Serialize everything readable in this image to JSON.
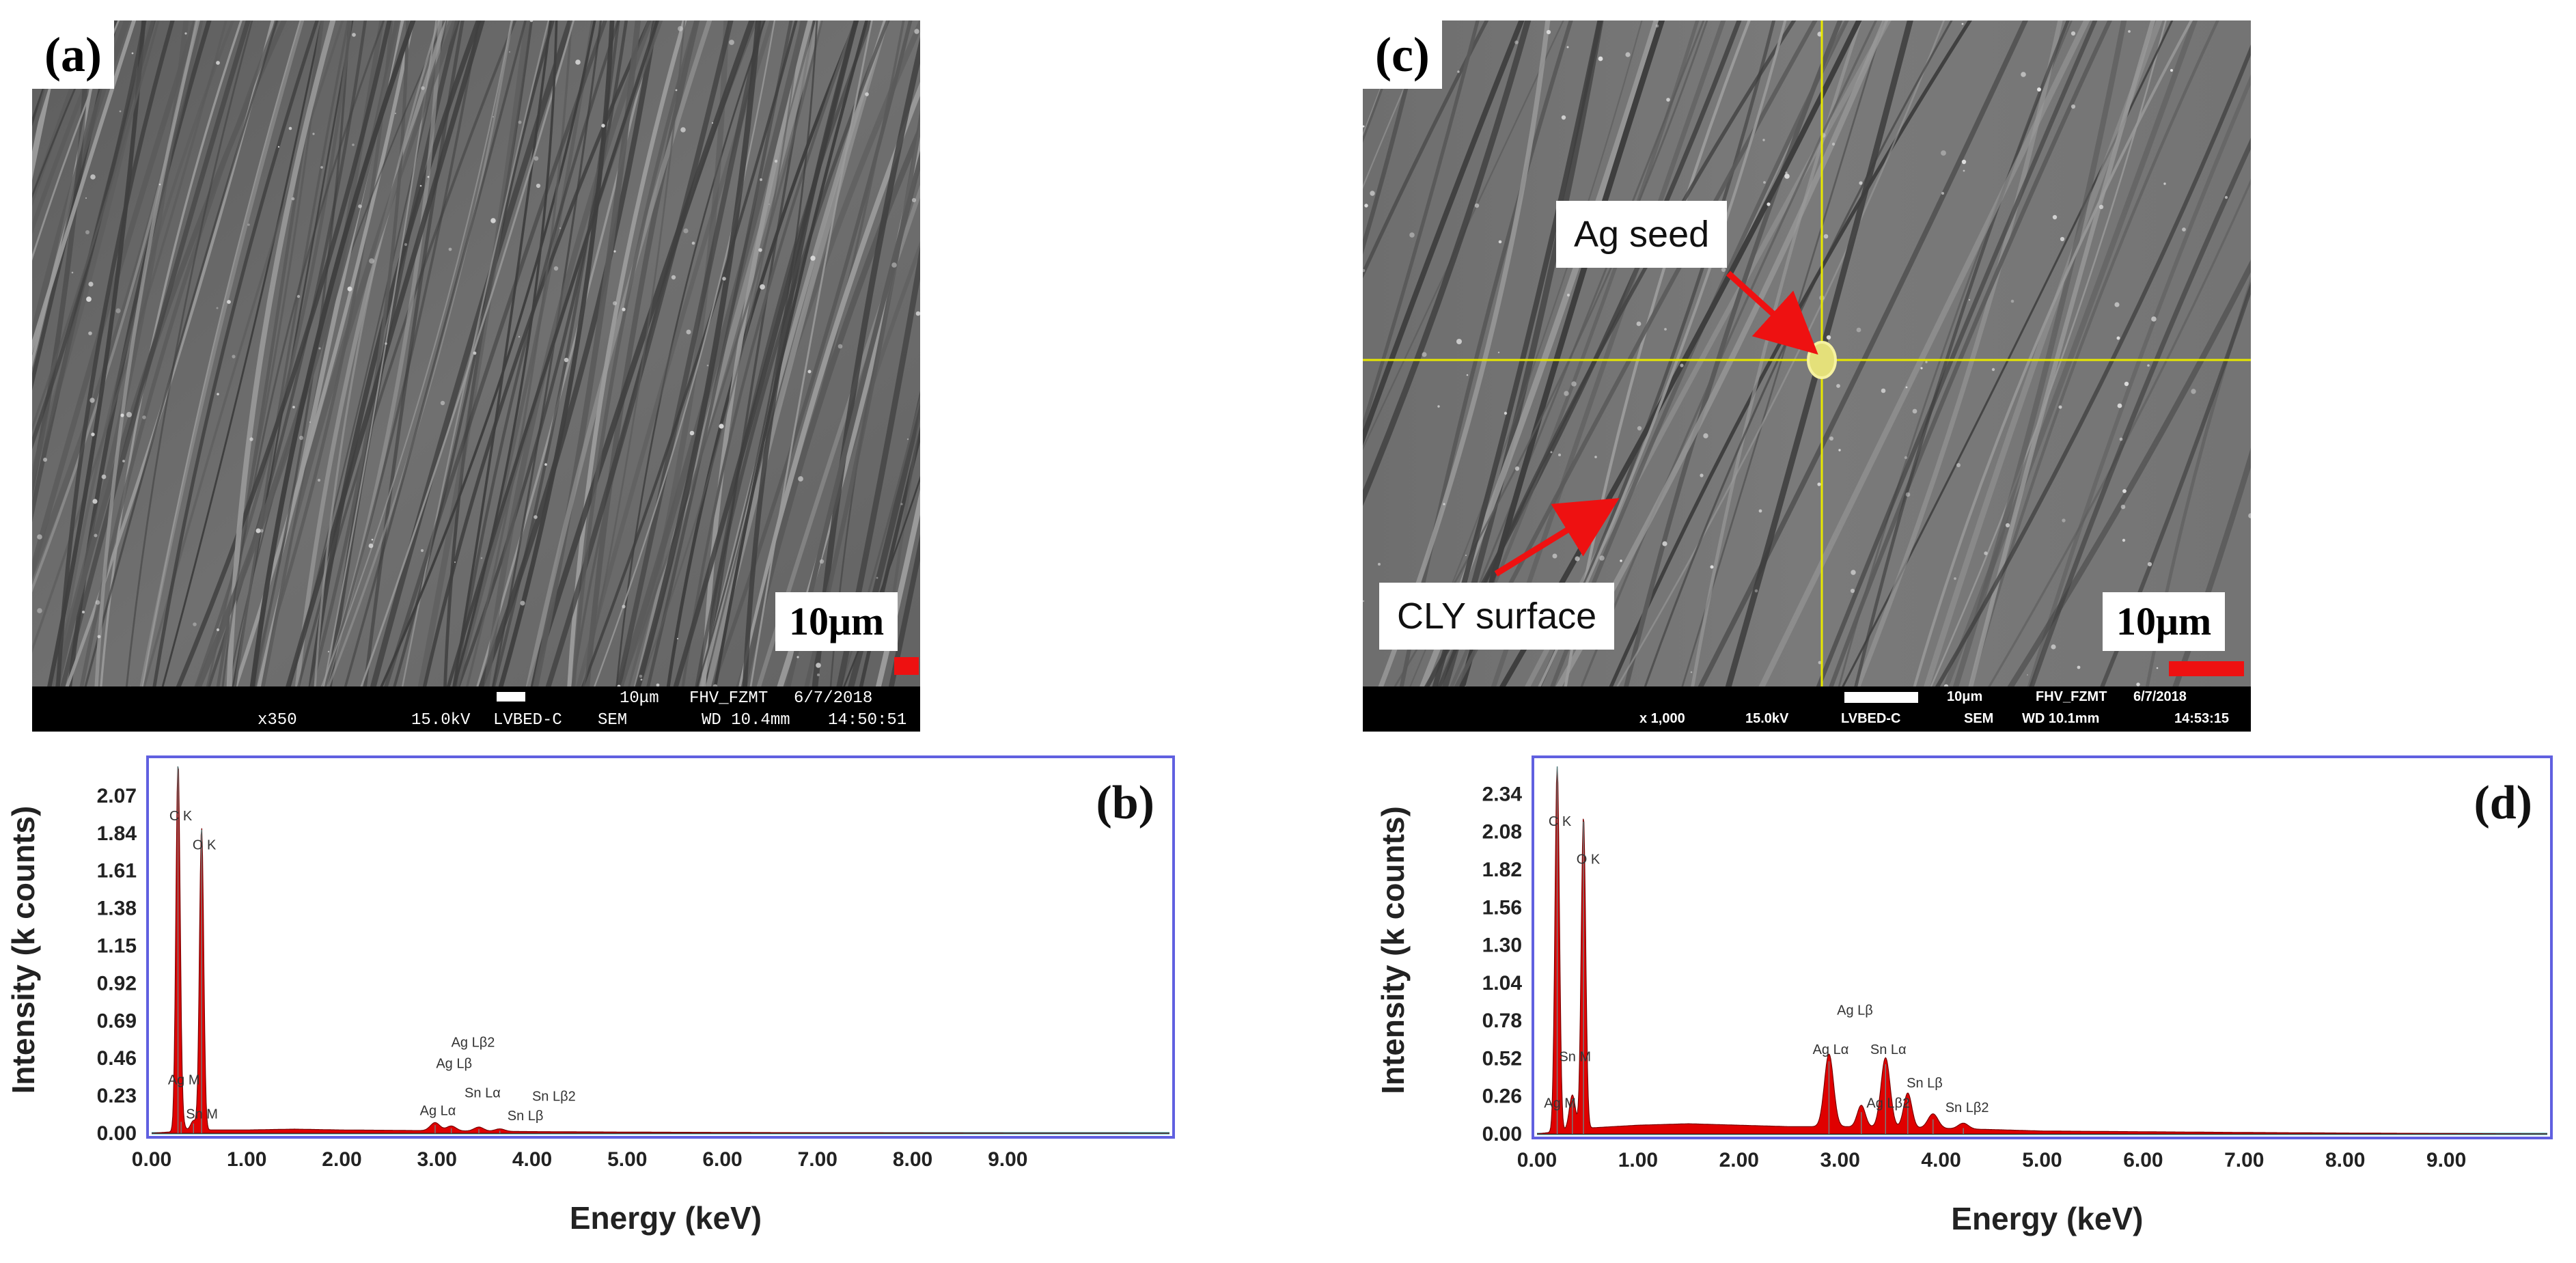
{
  "panels": {
    "a": {
      "label": "(a)",
      "scale_label": "10μm",
      "infobar": {
        "bar_text": "10μm",
        "site": "FHV_FZMT",
        "date": "6/7/2018",
        "magnification": "x350",
        "voltage": "15.0kV",
        "detector": "LVBED-C",
        "mode": "SEM",
        "wd": "WD 10.4mm",
        "time": "14:50:51"
      }
    },
    "c": {
      "label": "(c)",
      "scale_label": "10μm",
      "annotations": {
        "ag_seed": "Ag seed",
        "cly_surface": "CLY surface"
      },
      "infobar": {
        "bar_text": "10μm",
        "site": "FHV_FZMT",
        "date": "6/7/2018",
        "magnification": "x 1,000",
        "voltage": "15.0kV",
        "detector": "LVBED-C",
        "mode": "SEM",
        "wd": "WD 10.1mm",
        "time": "14:53:15"
      }
    }
  },
  "colors": {
    "spectrum_fill": "#e00000",
    "frame": "#6060e0",
    "baseline": "#00a0a0",
    "crosshair": "#e8e800",
    "arrow": "#ee1111"
  },
  "chart_data": [
    {
      "panel": "(b)",
      "type": "line",
      "xlabel": "Energy (keV)",
      "ylabel": "Intensity (k counts)",
      "xlim": [
        0,
        10.7
      ],
      "ylim": [
        0,
        2.25
      ],
      "x_ticks": [
        "0.00",
        "1.00",
        "2.00",
        "3.00",
        "4.00",
        "5.00",
        "6.00",
        "7.00",
        "8.00",
        "9.00"
      ],
      "y_ticks": [
        "0.00",
        "0.23",
        "0.46",
        "0.69",
        "0.92",
        "1.15",
        "1.38",
        "1.61",
        "1.84",
        "2.07"
      ],
      "background": [
        [
          0.0,
          0.0
        ],
        [
          0.5,
          0.02
        ],
        [
          1.0,
          0.02
        ],
        [
          1.5,
          0.025
        ],
        [
          2.0,
          0.02
        ],
        [
          2.5,
          0.018
        ],
        [
          3.0,
          0.015
        ],
        [
          4.0,
          0.01
        ],
        [
          5.0,
          0.007
        ],
        [
          6.0,
          0.005
        ],
        [
          7.0,
          0.003
        ],
        [
          8.0,
          0.002
        ],
        [
          9.0,
          0.001
        ],
        [
          10.6,
          0.0
        ]
      ],
      "peaks": [
        {
          "energy": 0.277,
          "height": 2.25,
          "width": 0.022
        },
        {
          "energy": 0.525,
          "height": 1.86,
          "width": 0.022
        },
        {
          "energy": 0.31,
          "height": 0.07,
          "width": 0.03
        },
        {
          "energy": 0.44,
          "height": 0.06,
          "width": 0.03
        },
        {
          "energy": 2.98,
          "height": 0.05,
          "width": 0.05
        },
        {
          "energy": 3.15,
          "height": 0.03,
          "width": 0.05
        },
        {
          "energy": 3.44,
          "height": 0.025,
          "width": 0.05
        },
        {
          "energy": 3.66,
          "height": 0.015,
          "width": 0.05
        }
      ],
      "annotations": [
        {
          "text": "C K",
          "energy": 0.277,
          "value": 1.92
        },
        {
          "text": "O K",
          "energy": 0.525,
          "value": 1.74
        },
        {
          "text": "Ag M",
          "energy": 0.31,
          "value": 0.3
        },
        {
          "text": "Sn M",
          "energy": 0.5,
          "value": 0.09
        },
        {
          "text": "Ag Lα",
          "energy": 2.98,
          "value": 0.11
        },
        {
          "text": "Ag Lβ",
          "energy": 3.15,
          "value": 0.4
        },
        {
          "text": "Ag Lβ2",
          "energy": 3.35,
          "value": 0.53
        },
        {
          "text": "Sn Lα",
          "energy": 3.45,
          "value": 0.22
        },
        {
          "text": "Sn Lβ2",
          "energy": 4.2,
          "value": 0.2
        },
        {
          "text": "Sn Lβ",
          "energy": 3.9,
          "value": 0.08
        }
      ]
    },
    {
      "panel": "(d)",
      "type": "line",
      "xlabel": "Energy (keV)",
      "ylabel": "Intensity (k counts)",
      "xlim": [
        0,
        10.0
      ],
      "ylim": [
        0,
        2.53
      ],
      "x_ticks": [
        "0.00",
        "1.00",
        "2.00",
        "3.00",
        "4.00",
        "5.00",
        "6.00",
        "7.00",
        "8.00",
        "9.00"
      ],
      "y_ticks": [
        "0.00",
        "0.26",
        "0.52",
        "0.78",
        "1.04",
        "1.30",
        "1.56",
        "1.82",
        "2.08",
        "2.34"
      ],
      "background": [
        [
          0.0,
          0.0
        ],
        [
          0.5,
          0.04
        ],
        [
          1.0,
          0.06
        ],
        [
          1.5,
          0.07
        ],
        [
          2.0,
          0.06
        ],
        [
          2.5,
          0.05
        ],
        [
          3.0,
          0.05
        ],
        [
          3.8,
          0.04
        ],
        [
          4.5,
          0.03
        ],
        [
          5.0,
          0.02
        ],
        [
          6.0,
          0.015
        ],
        [
          7.0,
          0.01
        ],
        [
          8.0,
          0.006
        ],
        [
          9.0,
          0.003
        ],
        [
          9.8,
          0.0
        ]
      ],
      "peaks": [
        {
          "energy": 0.2,
          "height": 2.53,
          "width": 0.022
        },
        {
          "energy": 0.46,
          "height": 2.15,
          "width": 0.022
        },
        {
          "energy": 0.35,
          "height": 0.24,
          "width": 0.03
        },
        {
          "energy": 2.89,
          "height": 0.5,
          "width": 0.045
        },
        {
          "energy": 3.21,
          "height": 0.15,
          "width": 0.04
        },
        {
          "energy": 3.45,
          "height": 0.48,
          "width": 0.045
        },
        {
          "energy": 3.67,
          "height": 0.24,
          "width": 0.04
        },
        {
          "energy": 3.92,
          "height": 0.1,
          "width": 0.05
        },
        {
          "energy": 4.22,
          "height": 0.04,
          "width": 0.05
        }
      ],
      "annotations": [
        {
          "text": "C K",
          "energy": 0.2,
          "value": 2.12
        },
        {
          "text": "O K",
          "energy": 0.48,
          "value": 1.86
        },
        {
          "text": "Sn M",
          "energy": 0.35,
          "value": 0.5
        },
        {
          "text": "Ag M",
          "energy": 0.2,
          "value": 0.18
        },
        {
          "text": "Ag Lβ",
          "energy": 3.12,
          "value": 0.82
        },
        {
          "text": "Ag Lα",
          "energy": 2.88,
          "value": 0.55
        },
        {
          "text": "Sn Lα",
          "energy": 3.45,
          "value": 0.55
        },
        {
          "text": "Sn Lβ",
          "energy": 3.81,
          "value": 0.32
        },
        {
          "text": "Ag Lβ2",
          "energy": 3.45,
          "value": 0.18
        },
        {
          "text": "Sn Lβ2",
          "energy": 4.23,
          "value": 0.15
        }
      ]
    }
  ]
}
